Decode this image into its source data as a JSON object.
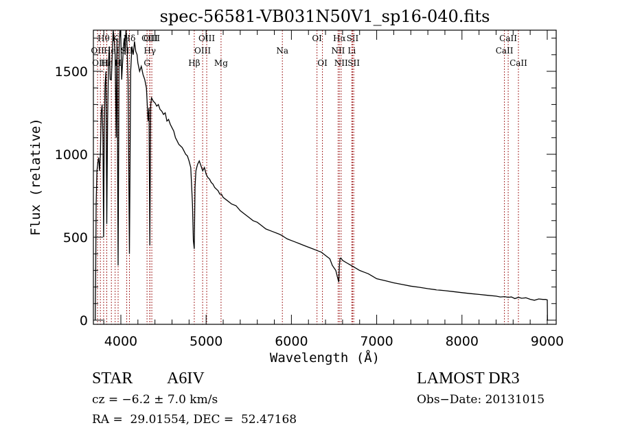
{
  "chart_data": {
    "type": "line",
    "title": "spec-56581-VB031N50V1_sp16-040.fits",
    "xlabel": "Wavelength (Å)",
    "ylabel": "Flux (relative)",
    "xlim": [
      3678,
      9105
    ],
    "ylim": [
      -25,
      1748
    ],
    "xticks": [
      4000,
      5000,
      6000,
      7000,
      8000,
      9000
    ],
    "xtick_labels": [
      "4000",
      "5000",
      "6000",
      "7000",
      "8000",
      "9000"
    ],
    "xminor_step": 200,
    "yticks": [
      0,
      500,
      1000,
      1500
    ],
    "ytick_labels": [
      "0",
      "500",
      "1000",
      "1500"
    ],
    "yminor_step": 100,
    "grid": false,
    "series": [
      {
        "name": "flux",
        "color": "#000000",
        "x": [
          3700,
          3705,
          3710,
          3720,
          3730,
          3740,
          3750,
          3760,
          3770,
          3780,
          3790,
          3798,
          3805,
          3815,
          3825,
          3835,
          3845,
          3855,
          3865,
          3875,
          3889,
          3900,
          3910,
          3920,
          3933,
          3945,
          3955,
          3968,
          3980,
          3990,
          4000,
          4010,
          4020,
          4030,
          4040,
          4050,
          4060,
          4070,
          4085,
          4101,
          4115,
          4130,
          4145,
          4160,
          4175,
          4190,
          4200,
          4220,
          4240,
          4260,
          4280,
          4300,
          4320,
          4330,
          4340,
          4350,
          4360,
          4380,
          4400,
          4420,
          4440,
          4460,
          4480,
          4500,
          4520,
          4540,
          4560,
          4580,
          4600,
          4620,
          4640,
          4660,
          4680,
          4700,
          4720,
          4740,
          4760,
          4780,
          4800,
          4820,
          4840,
          4850,
          4861,
          4870,
          4880,
          4890,
          4900,
          4920,
          4940,
          4960,
          4980,
          5000,
          5020,
          5040,
          5060,
          5080,
          5100,
          5120,
          5140,
          5160,
          5180,
          5200,
          5250,
          5300,
          5350,
          5400,
          5450,
          5500,
          5550,
          5600,
          5650,
          5700,
          5750,
          5800,
          5850,
          5890,
          5920,
          5950,
          6000,
          6050,
          6100,
          6150,
          6200,
          6250,
          6300,
          6350,
          6400,
          6450,
          6480,
          6520,
          6540,
          6555,
          6563,
          6570,
          6580,
          6600,
          6650,
          6700,
          6750,
          6800,
          6850,
          6900,
          6950,
          7000,
          7100,
          7200,
          7300,
          7400,
          7500,
          7600,
          7700,
          7800,
          7900,
          8000,
          8100,
          8200,
          8300,
          8400,
          8450,
          8500,
          8542,
          8580,
          8620,
          8662,
          8700,
          8750,
          8800,
          8850,
          8900,
          8950,
          8980,
          9000,
          9003,
          9005
        ],
        "values": [
          0,
          300,
          700,
          900,
          950,
          980,
          900,
          1000,
          1250,
          1300,
          1100,
          500,
          1150,
          1420,
          1500,
          580,
          1200,
          1550,
          1650,
          1450,
          1450,
          1620,
          1750,
          1700,
          1600,
          1100,
          1700,
          330,
          1650,
          1800,
          1700,
          1450,
          1550,
          1650,
          1700,
          1600,
          1750,
          1700,
          1450,
          400,
          1500,
          1650,
          1600,
          1680,
          1620,
          1600,
          1550,
          1500,
          1530,
          1480,
          1450,
          1400,
          1200,
          1280,
          450,
          1300,
          1340,
          1320,
          1310,
          1290,
          1300,
          1270,
          1260,
          1240,
          1250,
          1200,
          1210,
          1180,
          1160,
          1140,
          1100,
          1080,
          1060,
          1050,
          1040,
          1020,
          1000,
          990,
          960,
          920,
          700,
          480,
          430,
          800,
          900,
          920,
          940,
          960,
          930,
          900,
          920,
          880,
          860,
          850,
          830,
          820,
          800,
          790,
          780,
          760,
          760,
          740,
          720,
          700,
          690,
          660,
          640,
          620,
          600,
          590,
          570,
          550,
          540,
          530,
          520,
          510,
          500,
          490,
          480,
          470,
          460,
          450,
          440,
          430,
          420,
          410,
          390,
          370,
          330,
          300,
          260,
          230,
          330,
          370,
          375,
          360,
          345,
          330,
          315,
          300,
          290,
          280,
          265,
          250,
          238,
          225,
          215,
          205,
          198,
          190,
          183,
          178,
          172,
          166,
          160,
          155,
          150,
          145,
          140,
          142,
          138,
          140,
          130,
          138,
          132,
          135,
          126,
          120,
          128,
          125,
          125,
          122,
          0,
          0
        ]
      }
    ],
    "lines": [
      {
        "label": "OII",
        "wave": 3727,
        "row": 1
      },
      {
        "label": "Hθ",
        "wave": 3798,
        "row": 0
      },
      {
        "label": "OIII",
        "wave": 3760,
        "row": 2
      },
      {
        "label": "Hη",
        "wave": 3835,
        "row": 2
      },
      {
        "label": "K",
        "wave": 3933,
        "row": 0
      },
      {
        "label": "HeI",
        "wave": 3889,
        "row": 1
      },
      {
        "label": "H",
        "wave": 3968,
        "row": 2
      },
      {
        "label": "SII",
        "wave": 4069,
        "row": 1
      },
      {
        "label": "Hδ",
        "wave": 4101,
        "row": 0
      },
      {
        "label": "OIII",
        "wave": 4340,
        "row": 0
      },
      {
        "label": "Hγ",
        "wave": 4340,
        "row": 1
      },
      {
        "label": "G",
        "wave": 4307,
        "row": 2
      },
      {
        "label": "OIII",
        "wave": 4363,
        "row": 0
      },
      {
        "label": "Hβ",
        "wave": 4861,
        "row": 2
      },
      {
        "label": "OIII",
        "wave": 4959,
        "row": 1
      },
      {
        "label": "OIII",
        "wave": 5007,
        "row": 0
      },
      {
        "label": "Mg",
        "wave": 5175,
        "row": 2
      },
      {
        "label": "Na",
        "wave": 5894,
        "row": 1
      },
      {
        "label": "OI",
        "wave": 6300,
        "row": 0
      },
      {
        "label": "OI",
        "wave": 6364,
        "row": 2
      },
      {
        "label": "Hα",
        "wave": 6563,
        "row": 0
      },
      {
        "label": "NII",
        "wave": 6548,
        "row": 1
      },
      {
        "label": "NII",
        "wave": 6583,
        "row": 2
      },
      {
        "label": "SII",
        "wave": 6717,
        "row": 0
      },
      {
        "label": "Li",
        "wave": 6708,
        "row": 1
      },
      {
        "label": "SII",
        "wave": 6731,
        "row": 2
      },
      {
        "label": "CaII",
        "wave": 8542,
        "row": 0
      },
      {
        "label": "CaII",
        "wave": 8498,
        "row": 1
      },
      {
        "label": "CaII",
        "wave": 8662,
        "row": 2
      }
    ],
    "line_color": "#a52a2a"
  },
  "info": {
    "class_label": "STAR",
    "subclass": "A6IV",
    "cz": "cz = −6.2 ± 7.0 km/s",
    "coords": "RA =  29.01554, DEC =  52.47168",
    "survey": "LAMOST DR3",
    "obs_date": "Obs−Date: 20131015"
  }
}
